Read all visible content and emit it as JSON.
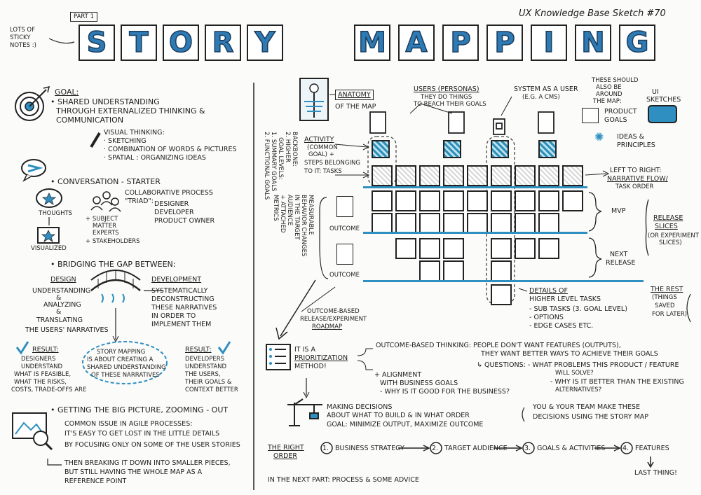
{
  "header": {
    "part_label": "PART 1",
    "sticky_note": [
      "LOTS OF",
      "STICKY",
      "NOTES :)"
    ],
    "series": "UX Knowledge Base Sketch #70",
    "title_word1": [
      "S",
      "T",
      "O",
      "R",
      "Y"
    ],
    "title_word2": [
      "M",
      "A",
      "P",
      "P",
      "I",
      "N",
      "G"
    ]
  },
  "left": {
    "goal_label": "GOAL:",
    "goal_lines": [
      "• SHARED UNDERSTANDING",
      "THROUGH EXTERNALIZED THINKING &",
      "COMMUNICATION"
    ],
    "visual_thinking": [
      "VISUAL THINKING:",
      "· SKETCHING",
      "· COMBINATION OF WORDS & PICTURES",
      "· SPATIAL : ORGANIZING IDEAS"
    ],
    "conversation": "• CONVERSATION - STARTER",
    "thoughts": "THOUGHTS",
    "visualized": "VISUALIZED",
    "collab": [
      "COLLABORATIVE PROCESS",
      "\"TRIAD\":"
    ],
    "triad": [
      "DESIGNER",
      "DEVELOPER",
      "PRODUCT OWNER"
    ],
    "sme": [
      "+ SUBJECT",
      "MATTER",
      "EXPERTS",
      "+ STAKEHOLDERS"
    ],
    "bridging": "• BRIDGING THE GAP BETWEEN:",
    "design_label": "DESIGN",
    "design_lines": [
      "UNDERSTANDING",
      "&",
      "ANALYZING",
      "&",
      "TRANSLATING",
      "THE USERS' NARRATIVES"
    ],
    "dev_label": "DEVELOPMENT",
    "dev_lines": [
      "SYSTEMATICALLY",
      "DECONSTRUCTING",
      "THESE NARRATIVES",
      "IN ORDER TO",
      "IMPLEMENT THEM"
    ],
    "result_label": "RESULT:",
    "result_left": [
      "DESIGNERS",
      "UNDERSTAND",
      "WHAT IS FEASIBLE,",
      "WHAT THE RISKS,",
      "COSTS, TRADE-OFFS ARE"
    ],
    "story_bubble": [
      "STORY MAPPING",
      "IS ABOUT CREATING A",
      "SHARED UNDERSTANDING",
      "OF THESE NARRATIVES"
    ],
    "result_right": [
      "DEVELOPERS",
      "UNDERSTAND",
      "THE USERS,",
      "THEIR GOALS &",
      "CONTEXT BETTER"
    ],
    "big_picture": "• GETTING THE BIG PICTURE, ZOOMING - OUT",
    "common_issue": [
      "COMMON ISSUE IN AGILE PROCESSES:",
      "IT'S EASY TO GET LOST IN THE LITTLE DETAILS",
      "BY FOCUSING ONLY ON SOME OF THE USER STORIES"
    ],
    "breaking": [
      "THEN BREAKING IT DOWN INTO SMALLER PIECES,",
      "BUT STILL HAVING THE WHOLE MAP AS A",
      "REFERENCE POINT"
    ]
  },
  "map": {
    "anatomy": [
      "ANATOMY",
      "OF THE MAP"
    ],
    "users": [
      "USERS (PERSONAS)",
      "THEY DO THINGS",
      "TO REACH THEIR GOALS"
    ],
    "system": [
      "SYSTEM AS A USER",
      "(E.G. A CMS)"
    ],
    "around": [
      "THESE SHOULD",
      "ALSO BE",
      "AROUND",
      "THE MAP:"
    ],
    "ui_sketches": [
      "UI",
      "SKETCHES"
    ],
    "product_goals": [
      "PRODUCT",
      "GOALS"
    ],
    "ideas": [
      "IDEAS &",
      "PRINCIPLES"
    ],
    "backbone": "BACKBONE:\n2. HIGHER\n   GOAL LEVELS:\n1. SUMMARY GOALS\n2. FUNCTIONAL GOALS",
    "activity": [
      "ACTIVITY",
      "(COMMON",
      "GOAL) +",
      "STEPS BELONGING",
      "TO IT: TASKS"
    ],
    "measurable": "MEASURABLE\nBEHAVIOR CHANGES\nIN THE TARGET\nAUDIENCE\n+ ATTACHED\nMETRICS",
    "outcome": "OUTCOME",
    "left_to_right": [
      "LEFT TO RIGHT:",
      "NARRATIVE FLOW/",
      "TASK ORDER"
    ],
    "mvp": "MVP",
    "next_release": [
      "NEXT",
      "RELEASE"
    ],
    "release_slices": [
      "RELEASE",
      "SLICES"
    ],
    "release_note": [
      "(OR EXPERIMENT",
      "SLICES)"
    ],
    "details": [
      "DETAILS OF",
      "HIGHER LEVEL TASKS",
      "- SUB TASKS (3. GOAL LEVEL)",
      "- OPTIONS",
      "- EDGE CASES ETC."
    ],
    "rest": [
      "THE REST",
      "(THINGS",
      "SAVED",
      "FOR LATER)"
    ],
    "roadmap": [
      "OUTCOME-BASED",
      "RELEASE/EXPERIMENT",
      "ROADMAP"
    ]
  },
  "bottom": {
    "prioritization": [
      "IT IS A",
      "PRIORITIZATION",
      "METHOD!"
    ],
    "outcome_thinking": [
      "OUTCOME-BASED THINKING: PEOPLE DON'T WANT FEATURES (OUTPUTS),",
      "THEY WANT BETTER WAYS TO ACHIEVE THEIR GOALS"
    ],
    "questions": [
      "↳ QUESTIONS: - WHAT PROBLEMS THIS PRODUCT / FEATURE",
      "WILL SOLVE?",
      "- WHY IS IT BETTER THAN THE EXISTING",
      "ALTERNATIVES?"
    ],
    "alignment": [
      "+ ALIGNMENT",
      "WITH BUSINESS GOALS",
      "- WHY IS IT GOOD FOR THE BUSINESS?"
    ],
    "decisions": [
      "MAKING DECISIONS",
      "ABOUT WHAT TO BUILD & IN WHAT ORDER",
      "GOAL: MINIMIZE OUTPUT, MAXIMIZE OUTCOME"
    ],
    "team": [
      "YOU & YOUR TEAM MAKE THESE",
      "DECISIONS USING THE STORY MAP"
    ],
    "right_order": [
      "THE RIGHT",
      "ORDER"
    ],
    "steps": [
      {
        "num": "1.",
        "label": "BUSINESS STRATEGY"
      },
      {
        "num": "2.",
        "label": "TARGET AUDIENCE"
      },
      {
        "num": "3.",
        "label": "GOALS & ACTIVITIES"
      },
      {
        "num": "4.",
        "label": "FEATURES"
      }
    ],
    "last_thing": "LAST THING!",
    "next_part": "IN THE NEXT PART: PROCESS & SOME ADVICE"
  },
  "colors": {
    "accent": "#2e8fc0",
    "ink": "#1d1d1d"
  },
  "icons": [
    "target-icon",
    "pencil-icon",
    "speech-bubble-icon",
    "thought-cloud-icon",
    "people-icon",
    "bridge-icon",
    "checkmark-icon",
    "zoom-map-icon",
    "skeleton-icon",
    "persona-card-icon",
    "system-card-icon",
    "goals-list-icon",
    "ui-sketch-icon",
    "lightbulb-icon",
    "numbered-list-icon",
    "crane-icon"
  ]
}
